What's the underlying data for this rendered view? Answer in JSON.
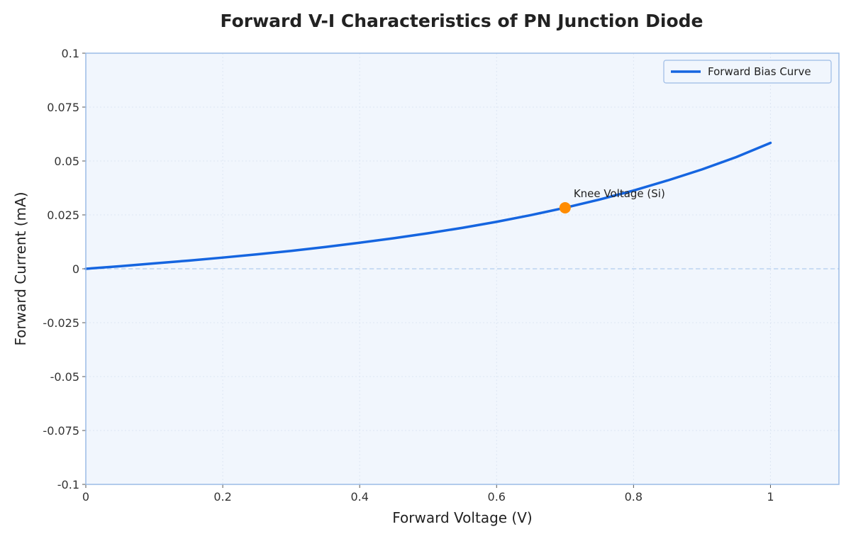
{
  "chart_data": {
    "type": "line",
    "title": "Forward V-I Characteristics of PN Junction Diode",
    "xlabel": "Forward Voltage (V)",
    "ylabel": "Forward Current (mA)",
    "xlim": [
      0,
      1.1
    ],
    "ylim": [
      -0.1,
      0.1
    ],
    "xticks": [
      0,
      0.2,
      0.4,
      0.6,
      0.8,
      1
    ],
    "xtick_labels": [
      "0",
      "0.2",
      "0.4",
      "0.6",
      "0.8",
      "1"
    ],
    "yticks": [
      -0.1,
      -0.075,
      -0.05,
      -0.025,
      0,
      0.025,
      0.05,
      0.075,
      0.1
    ],
    "ytick_labels": [
      "-0.1",
      "-0.075",
      "-0.05",
      "-0.025",
      "0",
      "0.025",
      "0.05",
      "0.075",
      "0.1"
    ],
    "grid": true,
    "legend_position": "top-right",
    "series": [
      {
        "name": "Forward Bias Curve",
        "color": "#1565e0",
        "x": [
          0,
          0.05,
          0.1,
          0.15,
          0.2,
          0.25,
          0.3,
          0.35,
          0.4,
          0.45,
          0.5,
          0.55,
          0.6,
          0.65,
          0.7,
          0.75,
          0.8,
          0.85,
          0.9,
          0.95,
          1.0
        ],
        "y": [
          0,
          0.0012,
          0.0025,
          0.0038,
          0.0052,
          0.0067,
          0.0083,
          0.0101,
          0.0121,
          0.0142,
          0.0165,
          0.019,
          0.0218,
          0.0249,
          0.0283,
          0.0321,
          0.0363,
          0.041,
          0.0461,
          0.0518,
          0.0584
        ]
      }
    ],
    "zero_line": {
      "y": 0,
      "style": "dashed",
      "color": "#bcd4f2"
    },
    "annotations": [
      {
        "text": "Knee Voltage (Si)",
        "x": 0.7,
        "y": 0.0283,
        "marker_color": "#ff8c00"
      }
    ],
    "colors": {
      "plot_background": "#f1f6fd",
      "plot_border": "#9bbbe6",
      "grid": "#dde6f3"
    }
  }
}
